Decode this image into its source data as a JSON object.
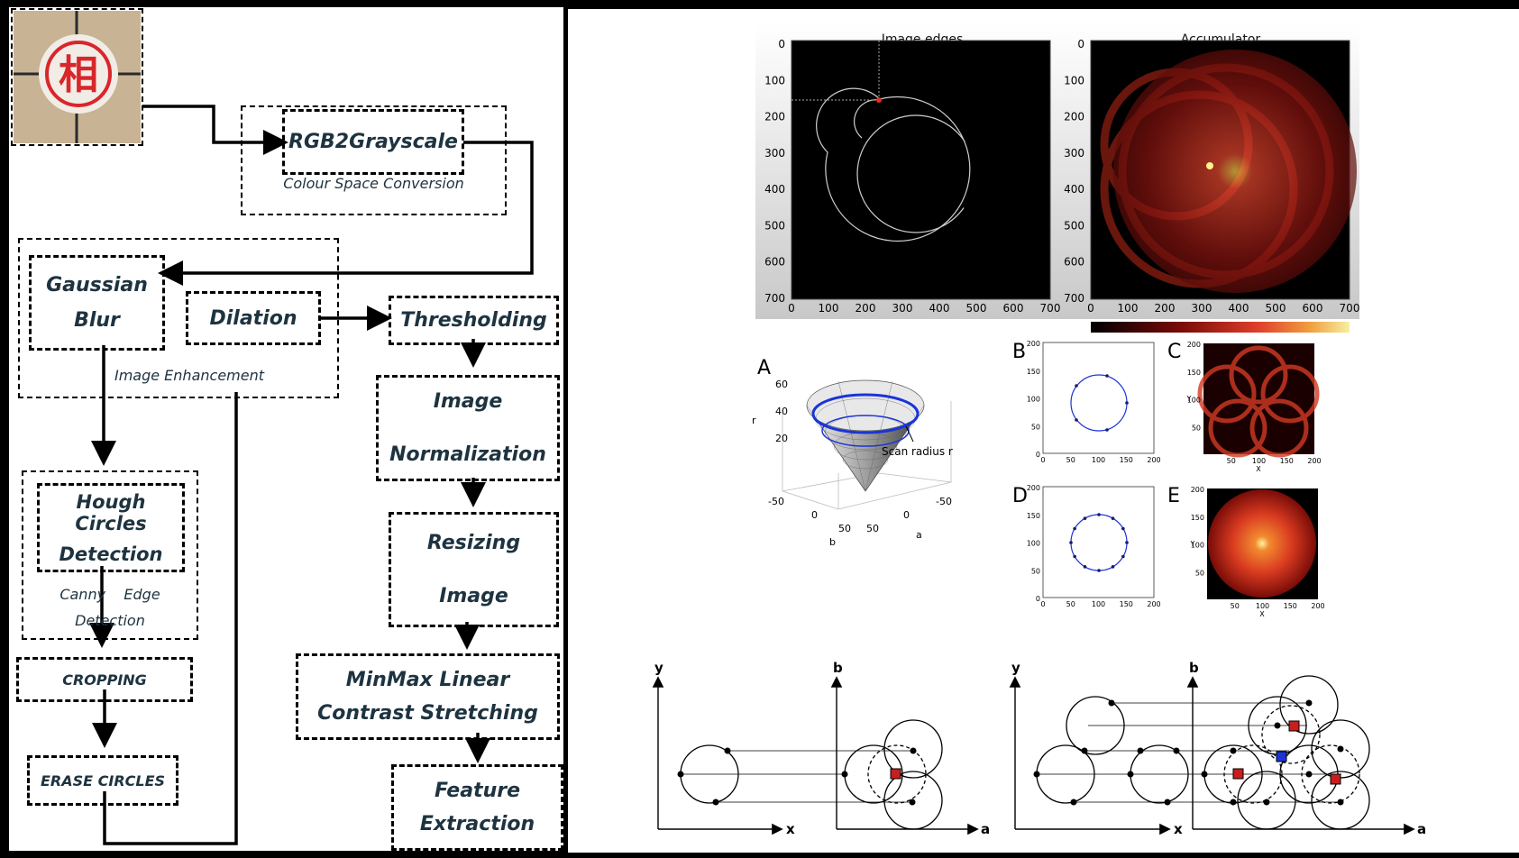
{
  "flowchart": {
    "rgb": "RGB2Grayscale",
    "colour_caption": "Colour Space Conversion",
    "gaussian_1": "Gaussian",
    "gaussian_2": "Blur",
    "dilation": "Dilation",
    "enhancement_caption": "Image Enhancement",
    "thresholding": "Thresholding",
    "normalization_1": "Image",
    "normalization_2": "Normalization",
    "resizing_1": "Resizing",
    "resizing_2": "Image",
    "hough_1": "Hough Circles",
    "hough_2": "Detection",
    "canny_1": "Canny    Edge",
    "canny_2": "Detection",
    "cropping": "CROPPING",
    "erase": "ERASE CIRCLES",
    "minmax_1": "MinMax Linear",
    "minmax_2": "Contrast Stretching",
    "feature_1": "Feature",
    "feature_2": "Extraction",
    "piece_char": "相",
    "piece_color": "#d9262b"
  },
  "top_plots": {
    "edges_title": "Image edges",
    "accumulator_title": "Accumulator",
    "ticks": [
      "0",
      "100",
      "200",
      "300",
      "400",
      "500",
      "600",
      "700"
    ]
  },
  "cone": {
    "label": "A",
    "r_label": "r",
    "r_ticks": [
      "60",
      "40",
      "20"
    ],
    "b_label": "b",
    "b_ticks": [
      "-50",
      "0",
      "50"
    ],
    "a_label": "a",
    "a_ticks": [
      "50",
      "0",
      "-50"
    ],
    "annotation": "Scan radius r"
  },
  "small_plots": {
    "label_b": "B",
    "label_c": "C",
    "label_d": "D",
    "label_e": "E",
    "y_ticks": [
      "200",
      "150",
      "100",
      "50",
      "0"
    ],
    "x_ticks": [
      "0",
      "50",
      "100",
      "150",
      "200"
    ],
    "hm_y_ticks": [
      "200",
      "150",
      "100",
      "50"
    ],
    "hm_x_ticks": [
      "50",
      "100",
      "150",
      "200"
    ],
    "x_label": "X",
    "y_label": "Y"
  },
  "bottom": {
    "y": "y",
    "x": "x",
    "b": "b",
    "a": "a"
  }
}
